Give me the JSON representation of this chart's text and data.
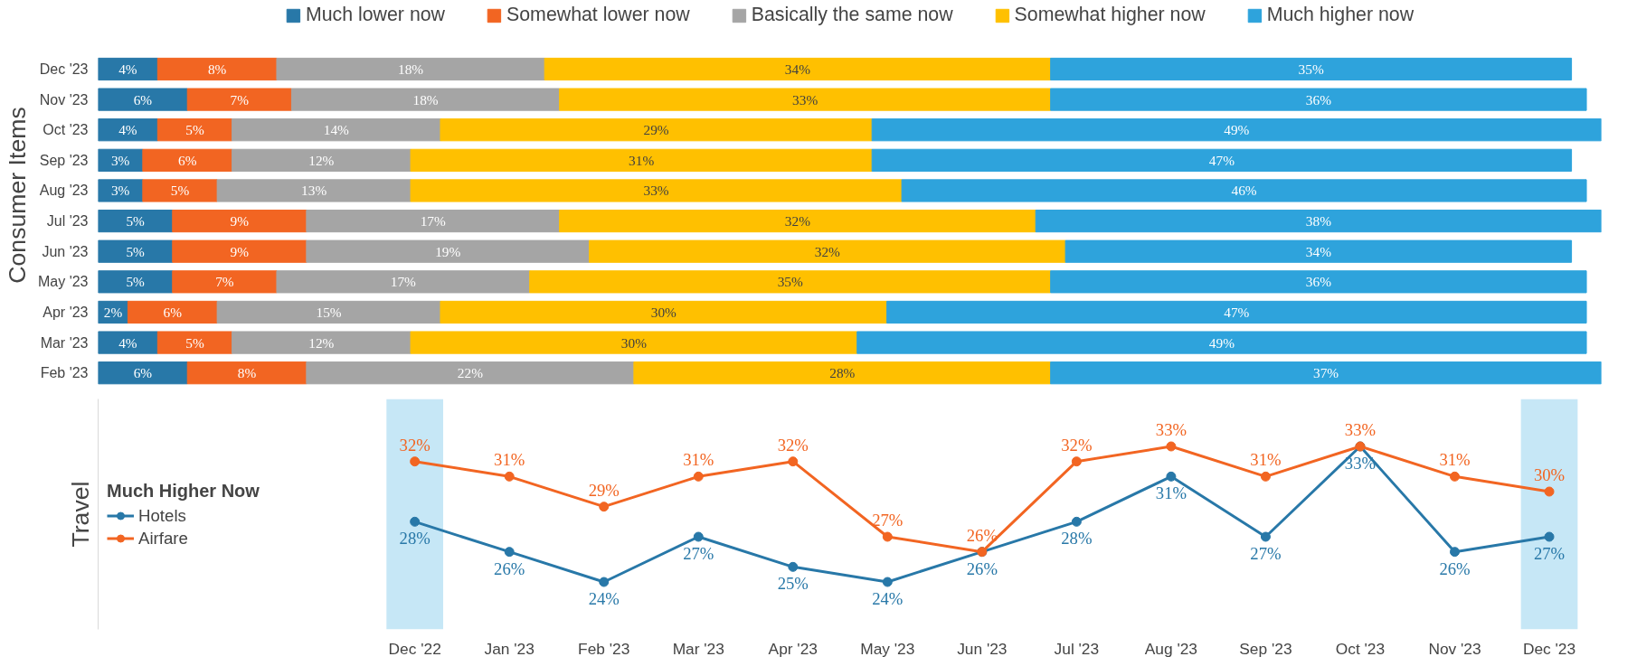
{
  "chart_data": [
    {
      "type": "bar",
      "orientation": "horizontal",
      "stacked": true,
      "ylabel": "Consumer Items",
      "legend": "top",
      "tick_labels": "y",
      "categories": [
        "Dec '23",
        "Nov '23",
        "Oct '23",
        "Sep '23",
        "Aug '23",
        "Jul '23",
        "Jun '23",
        "May '23",
        "Apr '23",
        "Mar '23",
        "Feb '23"
      ],
      "series": [
        {
          "name": "Much lower now",
          "color": "#2878a8",
          "values": [
            4,
            6,
            4,
            3,
            3,
            5,
            5,
            5,
            2,
            4,
            6
          ],
          "value_labels": [
            "4%",
            "6%",
            "4%",
            "3%",
            "3%",
            "5%",
            "5%",
            "5%",
            "2%",
            "4%",
            "6%"
          ]
        },
        {
          "name": "Somewhat lower now",
          "color": "#f26522",
          "values": [
            8,
            7,
            5,
            6,
            5,
            9,
            9,
            7,
            6,
            5,
            8
          ],
          "value_labels": [
            "8%",
            "7%",
            "5%",
            "6%",
            "5%",
            "9%",
            "9%",
            "7%",
            "6%",
            "5%",
            "8%"
          ]
        },
        {
          "name": "Basically the same now",
          "color": "#a5a5a5",
          "values": [
            18,
            18,
            14,
            12,
            13,
            17,
            19,
            17,
            15,
            12,
            22
          ],
          "value_labels": [
            "18%",
            "18%",
            "14%",
            "12%",
            "13%",
            "17%",
            "19%",
            "17%",
            "15%",
            "12%",
            "22%"
          ]
        },
        {
          "name": "Somewhat higher now",
          "color": "#ffc000",
          "values": [
            34,
            33,
            29,
            31,
            33,
            32,
            32,
            35,
            30,
            30,
            28
          ],
          "value_labels": [
            "34%",
            "33%",
            "29%",
            "31%",
            "33%",
            "32%",
            "32%",
            "35%",
            "30%",
            "30%",
            "28%"
          ]
        },
        {
          "name": "Much higher now",
          "color": "#2ea3dc",
          "values": [
            35,
            36,
            49,
            47,
            46,
            38,
            34,
            36,
            47,
            49,
            37
          ],
          "value_labels": [
            "35%",
            "36%",
            "49%",
            "47%",
            "46%",
            "38%",
            "34%",
            "36%",
            "47%",
            "49%",
            "37%"
          ]
        }
      ]
    },
    {
      "type": "line",
      "ylabel": "Travel",
      "legend_title": "Much Higher Now",
      "legend": "left",
      "marker": "circle",
      "tick_labels": "x",
      "categories": [
        "Dec '22",
        "Jan '23",
        "Feb '23",
        "Mar '23",
        "Apr '23",
        "May '23",
        "Jun '23",
        "Jul '23",
        "Aug '23",
        "Sep '23",
        "Oct '23",
        "Nov '23",
        "Dec '23"
      ],
      "bands": [
        {
          "axis": "x",
          "from": "Dec '22",
          "to": "Dec '22",
          "color": "#c6e7f6"
        },
        {
          "axis": "x",
          "from": "Dec '23",
          "to": "Dec '23",
          "color": "#c6e7f6"
        }
      ],
      "series": [
        {
          "name": "Hotels",
          "color": "#2878a8",
          "values": [
            28,
            26,
            24,
            27,
            25,
            24,
            26,
            28,
            31,
            27,
            33,
            26,
            27
          ],
          "value_labels": [
            "28%",
            "26%",
            "24%",
            "27%",
            "25%",
            "24%",
            "26%",
            "28%",
            "31%",
            "27%",
            "33%",
            "26%",
            "27%"
          ]
        },
        {
          "name": "Airfare",
          "color": "#f26522",
          "values": [
            32,
            31,
            29,
            31,
            32,
            27,
            26,
            32,
            33,
            31,
            33,
            31,
            30
          ],
          "value_labels": [
            "32%",
            "31%",
            "29%",
            "31%",
            "32%",
            "27%",
            "26%",
            "32%",
            "33%",
            "31%",
            "33%",
            "31%",
            "30%"
          ]
        }
      ]
    }
  ]
}
